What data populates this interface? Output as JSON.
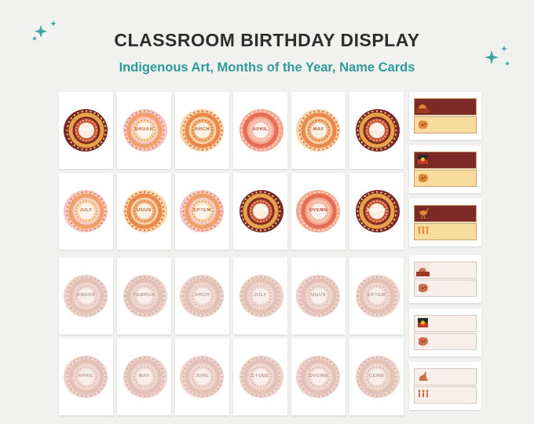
{
  "header": {
    "title": "CLASSROOM BIRTHDAY DISPLAY",
    "subtitle": "Indigenous Art, Months of the Year, Name Cards"
  },
  "colors": {
    "teal": "#2f9a9a",
    "brown": "#7b2a25",
    "cream": "#f7dc9e",
    "pink": "#f3c0c0",
    "peach": "#f4c9a0",
    "muted": "#ecd6d0"
  },
  "month_cards_colored": [
    {
      "label": "ANUA",
      "style": "brown"
    },
    {
      "label": "BRUAR",
      "style": "pink"
    },
    {
      "label": "ARCH",
      "style": "peach"
    },
    {
      "label": "APRIL",
      "style": "coral"
    },
    {
      "label": "MAY",
      "style": "peach"
    },
    {
      "label": "JUNE",
      "style": "brown"
    },
    {
      "label": "JULY",
      "style": "pink"
    },
    {
      "label": "UGUS",
      "style": "peach"
    },
    {
      "label": "EPTEM",
      "style": "pink"
    },
    {
      "label": "CTOB",
      "style": "brown"
    },
    {
      "label": "OVEMB",
      "style": "coral"
    },
    {
      "label": "ECEMB",
      "style": "brown"
    }
  ],
  "month_cards_muted": [
    {
      "label": "ANUAR"
    },
    {
      "label": "FEBRUA"
    },
    {
      "label": "ARCH"
    },
    {
      "label": "JULY"
    },
    {
      "label": "UGUS"
    },
    {
      "label": "EPTEM"
    },
    {
      "label": "APRIL"
    },
    {
      "label": "MAY"
    },
    {
      "label": "JUNE"
    },
    {
      "label": "CTOBE"
    },
    {
      "label": "OVEMB"
    },
    {
      "label": "CEMB"
    }
  ],
  "name_cards": [
    {
      "icons": [
        "sunset-icon",
        "australia-map-icon"
      ],
      "theme": "colored"
    },
    {
      "icons": [
        "aboriginal-flag-icon",
        "australia-map-icon"
      ],
      "theme": "colored"
    },
    {
      "icons": [
        "emu-icon",
        "dancers-icon"
      ],
      "theme": "colored"
    },
    {
      "icons": [
        "sunset-icon",
        "australia-map-icon"
      ],
      "theme": "muted"
    },
    {
      "icons": [
        "aboriginal-flag-icon",
        "australia-map-icon"
      ],
      "theme": "muted"
    },
    {
      "icons": [
        "kangaroo-icon",
        "dancers-icon"
      ],
      "theme": "muted"
    }
  ]
}
